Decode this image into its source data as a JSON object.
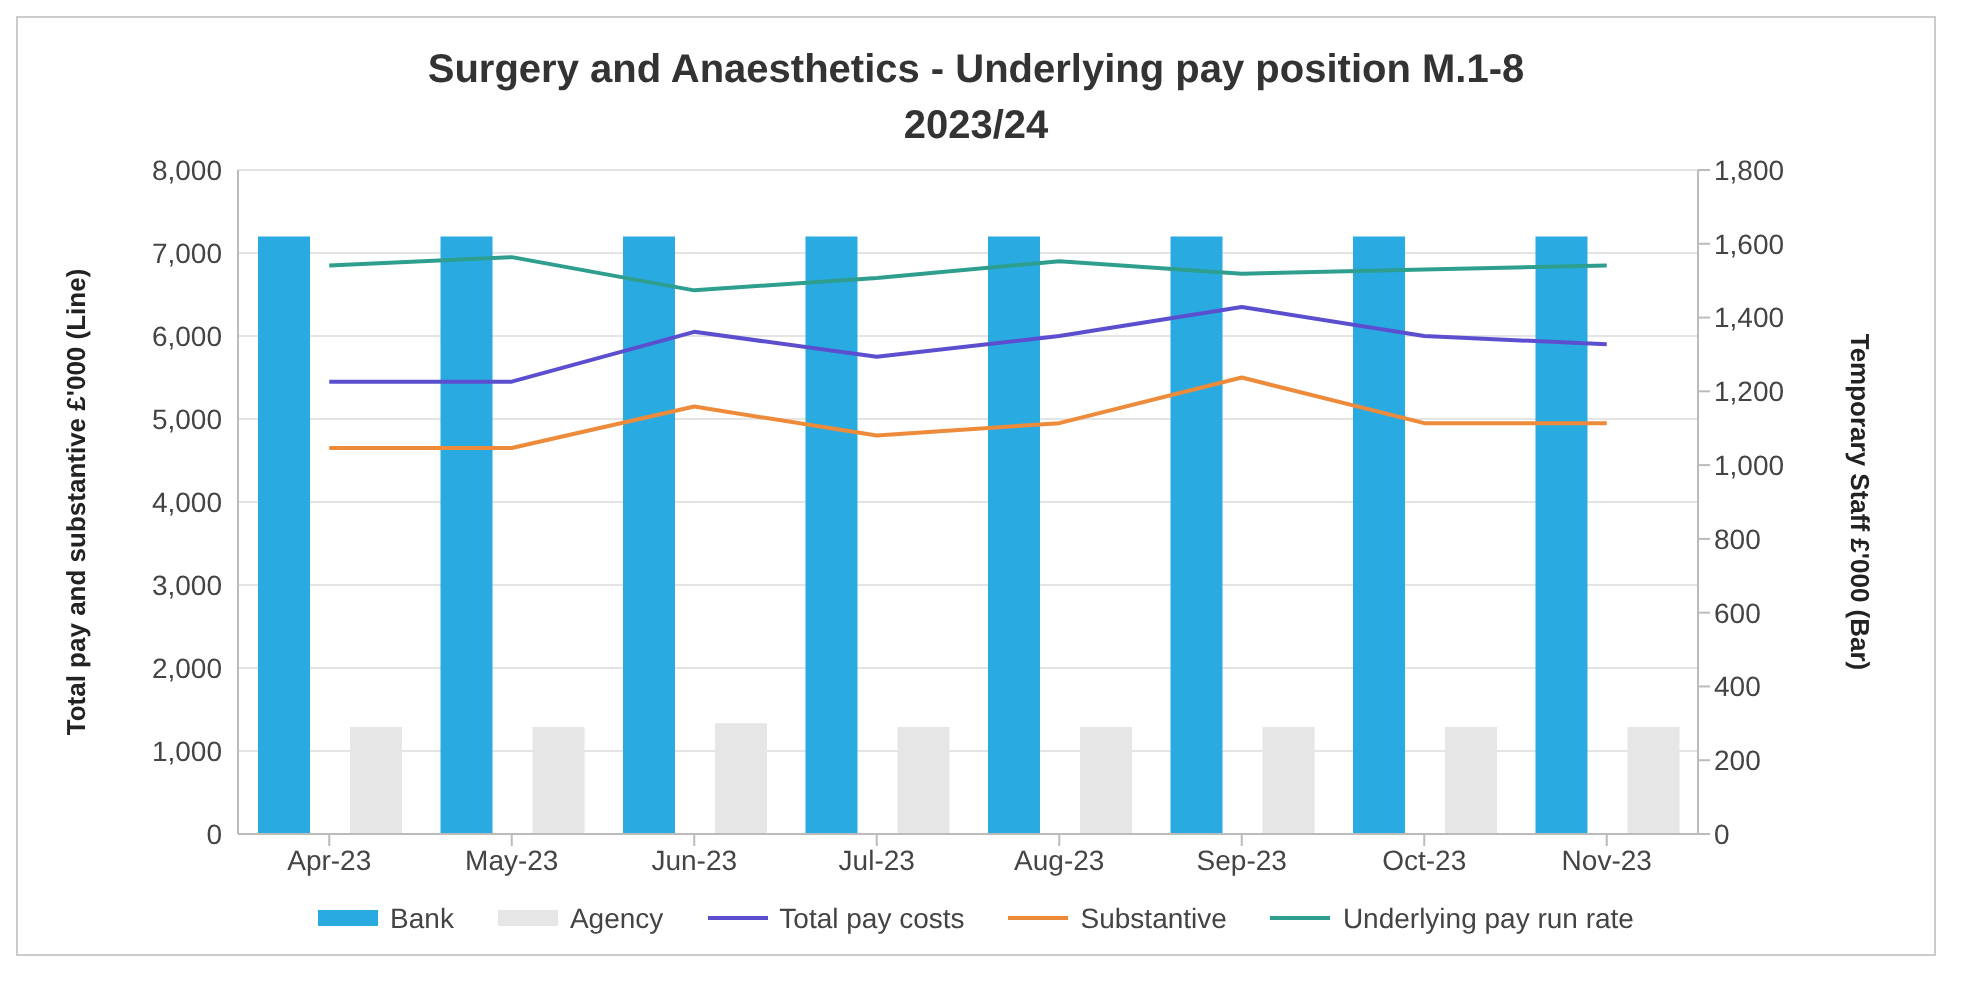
{
  "chart_data": {
    "type": "bar",
    "title": "Surgery and Anaesthetics - Underlying pay position M.1-8 2023/24",
    "categories": [
      "Apr-23",
      "May-23",
      "Jun-23",
      "Jul-23",
      "Aug-23",
      "Sep-23",
      "Oct-23",
      "Nov-23"
    ],
    "series": [
      {
        "name": "Bank",
        "axis": "y2",
        "color": "#29abe2",
        "values": [
          1620,
          1620,
          1620,
          1620,
          1620,
          1620,
          1620,
          1620
        ]
      },
      {
        "name": "Agency",
        "axis": "y2",
        "color": "#e6e6e6",
        "values": [
          290,
          290,
          300,
          290,
          290,
          290,
          290,
          290
        ]
      },
      {
        "name": "Total pay costs",
        "type": "line",
        "color": "#5b4fcf",
        "values": [
          5450,
          5450,
          6050,
          5750,
          6000,
          6350,
          6000,
          5900
        ]
      },
      {
        "name": "Substantive",
        "type": "line",
        "color": "#ed8b3a",
        "values": [
          4650,
          4650,
          5150,
          4800,
          4950,
          5500,
          4950,
          4950
        ]
      },
      {
        "name": "Underlying pay run rate",
        "type": "line",
        "color": "#2e9e8f",
        "values": [
          6850,
          6950,
          6550,
          6700,
          6900,
          6750,
          6800,
          6850
        ]
      }
    ],
    "ylabel": "Total pay and substantive £'000 (Line)",
    "y2label": "Temporary Staff £'000 (Bar)",
    "ylim": [
      0,
      8000
    ],
    "yticks": [
      0,
      {
        "value": 1000,
        "label": "1,000"
      },
      {
        "value": 2000,
        "label": "2,000"
      },
      {
        "value": 3000,
        "label": "3,000"
      },
      {
        "value": 4000,
        "label": "4,000"
      },
      {
        "value": 5000,
        "label": "5,000"
      },
      {
        "value": 6000,
        "label": "6,000"
      },
      {
        "value": 7000,
        "label": "7,000"
      },
      {
        "value": 8000,
        "label": "8,000"
      }
    ],
    "y2lim": [
      0,
      1800
    ],
    "y2ticks": [
      0,
      200,
      400,
      600,
      800,
      {
        "value": 1000,
        "label": "1,000"
      },
      {
        "value": 1200,
        "label": "1,200"
      },
      {
        "value": 1400,
        "label": "1,400"
      },
      {
        "value": 1600,
        "label": "1,600"
      },
      {
        "value": 1800,
        "label": "1,800"
      }
    ],
    "grid": "y",
    "legend": "bottom",
    "marker": "none",
    "line_style": "solid"
  }
}
